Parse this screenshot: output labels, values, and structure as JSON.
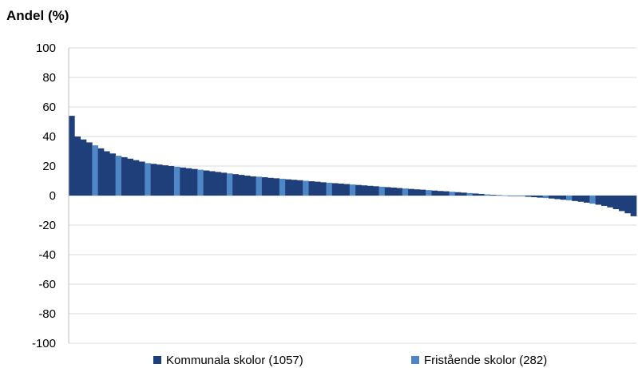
{
  "chart_data": {
    "type": "bar",
    "ylabel": "Andel (%)",
    "ylim": [
      -100,
      100
    ],
    "yticks": [
      100,
      80,
      60,
      40,
      20,
      0,
      -20,
      -40,
      -60,
      -80,
      -100
    ],
    "grid": true,
    "legend_position": "bottom",
    "series": [
      {
        "name": "Kommunala skolor (1057)",
        "color": "#1f3f7a"
      },
      {
        "name": "Fristående skolor (282)",
        "color": "#4f86c6"
      }
    ],
    "bars": [
      {
        "value": 54,
        "series": 0
      },
      {
        "value": 40,
        "series": 0
      },
      {
        "value": 38,
        "series": 0
      },
      {
        "value": 36,
        "series": 0
      },
      {
        "value": 34,
        "series": 1
      },
      {
        "value": 32,
        "series": 0
      },
      {
        "value": 30,
        "series": 0
      },
      {
        "value": 28.5,
        "series": 0
      },
      {
        "value": 27,
        "series": 1
      },
      {
        "value": 26,
        "series": 0
      },
      {
        "value": 25,
        "series": 0
      },
      {
        "value": 24,
        "series": 0
      },
      {
        "value": 23,
        "series": 0
      },
      {
        "value": 22,
        "series": 1
      },
      {
        "value": 21.5,
        "series": 0
      },
      {
        "value": 21,
        "series": 0
      },
      {
        "value": 20.5,
        "series": 0
      },
      {
        "value": 20,
        "series": 0
      },
      {
        "value": 19.5,
        "series": 1
      },
      {
        "value": 19,
        "series": 0
      },
      {
        "value": 18.5,
        "series": 0
      },
      {
        "value": 18,
        "series": 0
      },
      {
        "value": 17.5,
        "series": 1
      },
      {
        "value": 17,
        "series": 0
      },
      {
        "value": 16.5,
        "series": 0
      },
      {
        "value": 16,
        "series": 0
      },
      {
        "value": 15.5,
        "series": 0
      },
      {
        "value": 15,
        "series": 1
      },
      {
        "value": 14.5,
        "series": 0
      },
      {
        "value": 14,
        "series": 0
      },
      {
        "value": 13.5,
        "series": 0
      },
      {
        "value": 13,
        "series": 0
      },
      {
        "value": 12.8,
        "series": 1
      },
      {
        "value": 12.4,
        "series": 0
      },
      {
        "value": 12,
        "series": 0
      },
      {
        "value": 11.7,
        "series": 0
      },
      {
        "value": 11.4,
        "series": 1
      },
      {
        "value": 11,
        "series": 0
      },
      {
        "value": 10.7,
        "series": 0
      },
      {
        "value": 10.4,
        "series": 0
      },
      {
        "value": 10,
        "series": 1
      },
      {
        "value": 9.7,
        "series": 0
      },
      {
        "value": 9.4,
        "series": 0
      },
      {
        "value": 9,
        "series": 0
      },
      {
        "value": 8.7,
        "series": 1
      },
      {
        "value": 8.4,
        "series": 0
      },
      {
        "value": 8.1,
        "series": 0
      },
      {
        "value": 7.8,
        "series": 0
      },
      {
        "value": 7.5,
        "series": 1
      },
      {
        "value": 7.2,
        "series": 0
      },
      {
        "value": 6.9,
        "series": 0
      },
      {
        "value": 6.6,
        "series": 0
      },
      {
        "value": 6.3,
        "series": 0
      },
      {
        "value": 6,
        "series": 1
      },
      {
        "value": 5.7,
        "series": 0
      },
      {
        "value": 5.4,
        "series": 0
      },
      {
        "value": 5.1,
        "series": 0
      },
      {
        "value": 4.8,
        "series": 1
      },
      {
        "value": 4.5,
        "series": 0
      },
      {
        "value": 4.2,
        "series": 0
      },
      {
        "value": 4,
        "series": 0
      },
      {
        "value": 3.7,
        "series": 1
      },
      {
        "value": 3.4,
        "series": 0
      },
      {
        "value": 3.1,
        "series": 0
      },
      {
        "value": 2.9,
        "series": 0
      },
      {
        "value": 2.6,
        "series": 1
      },
      {
        "value": 2.3,
        "series": 0
      },
      {
        "value": 2,
        "series": 0
      },
      {
        "value": 1.7,
        "series": 1
      },
      {
        "value": 1.4,
        "series": 0
      },
      {
        "value": 1.1,
        "series": 0
      },
      {
        "value": 0.8,
        "series": 1
      },
      {
        "value": 0.5,
        "series": 0
      },
      {
        "value": 0.3,
        "series": 0
      },
      {
        "value": 0.1,
        "series": 1
      },
      {
        "value": -0.1,
        "series": 0
      },
      {
        "value": -0.3,
        "series": 0
      },
      {
        "value": -0.5,
        "series": 1
      },
      {
        "value": -0.8,
        "series": 0
      },
      {
        "value": -1.1,
        "series": 0
      },
      {
        "value": -1.4,
        "series": 0
      },
      {
        "value": -1.7,
        "series": 1
      },
      {
        "value": -2,
        "series": 0
      },
      {
        "value": -2.4,
        "series": 0
      },
      {
        "value": -2.8,
        "series": 0
      },
      {
        "value": -3.2,
        "series": 1
      },
      {
        "value": -3.7,
        "series": 0
      },
      {
        "value": -4.2,
        "series": 0
      },
      {
        "value": -4.8,
        "series": 0
      },
      {
        "value": -5.5,
        "series": 1
      },
      {
        "value": -6.2,
        "series": 0
      },
      {
        "value": -7,
        "series": 0
      },
      {
        "value": -8,
        "series": 0
      },
      {
        "value": -9.2,
        "series": 0
      },
      {
        "value": -10.5,
        "series": 0
      },
      {
        "value": -12,
        "series": 0
      },
      {
        "value": -14,
        "series": 0
      }
    ]
  }
}
